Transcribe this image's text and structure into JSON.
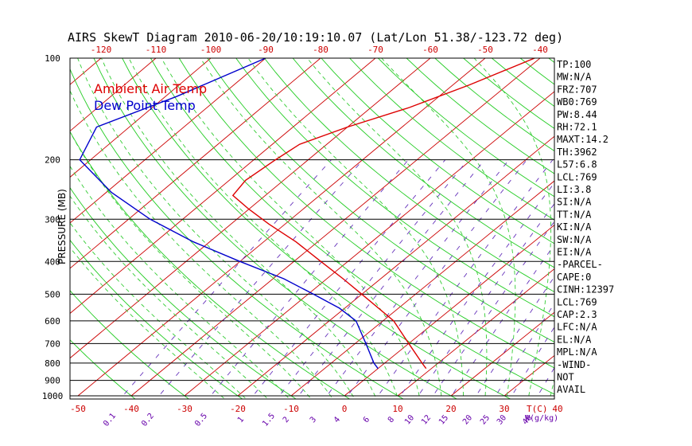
{
  "chart_data": {
    "type": "line",
    "title": "AIRS SkewT Diagram 2010-06-20/10:19:10.07 (Lat/Lon 51.38/-123.72 deg)",
    "ylabel": "PRESSURE (MB)",
    "x_unit_label": "T(C)",
    "mixing_unit_label": "W(g/kg)",
    "pressure_ticks": [
      100,
      200,
      300,
      400,
      500,
      600,
      700,
      800,
      900,
      1000
    ],
    "top_temp_ticks": [
      -120,
      -110,
      -100,
      -90,
      -80,
      -70,
      -60,
      -50,
      -40
    ],
    "bottom_temp_ticks": [
      -50,
      -40,
      -30,
      -20,
      -10,
      0,
      10,
      20,
      30,
      40
    ],
    "mixing_ratio_ticks": [
      "0.1",
      "0.2",
      "0.5",
      "1",
      "1.5",
      "2",
      "3",
      "4",
      "6",
      "8",
      "10",
      "12",
      "15",
      "20",
      "25",
      "30",
      "40"
    ],
    "legend": [
      {
        "name": "Ambient Air Temp",
        "color": "#dd0000"
      },
      {
        "name": "Dew Point Temp",
        "color": "#0000cc"
      }
    ],
    "series": [
      {
        "name": "Ambient Air Temp",
        "color": "#dd0000",
        "points": [
          {
            "p": 100,
            "t": -41
          },
          {
            "p": 120,
            "t": -47
          },
          {
            "p": 140,
            "t": -53
          },
          {
            "p": 160,
            "t": -60
          },
          {
            "p": 180,
            "t": -65
          },
          {
            "p": 200,
            "t": -66
          },
          {
            "p": 230,
            "t": -67
          },
          {
            "p": 255,
            "t": -66
          },
          {
            "p": 280,
            "t": -60
          },
          {
            "p": 310,
            "t": -53
          },
          {
            "p": 350,
            "t": -44
          },
          {
            "p": 400,
            "t": -35
          },
          {
            "p": 450,
            "t": -27
          },
          {
            "p": 500,
            "t": -20
          },
          {
            "p": 600,
            "t": -8
          },
          {
            "p": 700,
            "t": 0
          },
          {
            "p": 800,
            "t": 7
          },
          {
            "p": 830,
            "t": 9
          }
        ]
      },
      {
        "name": "Dew Point Temp",
        "color": "#0000cc",
        "points": [
          {
            "p": 100,
            "t": -90
          },
          {
            "p": 130,
            "t": -98
          },
          {
            "p": 160,
            "t": -106
          },
          {
            "p": 200,
            "t": -102
          },
          {
            "p": 250,
            "t": -89
          },
          {
            "p": 300,
            "t": -76
          },
          {
            "p": 350,
            "t": -63
          },
          {
            "p": 400,
            "t": -50
          },
          {
            "p": 450,
            "t": -38
          },
          {
            "p": 500,
            "t": -29
          },
          {
            "p": 550,
            "t": -21
          },
          {
            "p": 600,
            "t": -15
          },
          {
            "p": 700,
            "t": -8
          },
          {
            "p": 800,
            "t": -2
          },
          {
            "p": 830,
            "t": 0
          }
        ]
      }
    ]
  },
  "indices": [
    "TP:100",
    "MW:N/A",
    "FRZ:707",
    "WB0:769",
    "PW:8.44",
    "RH:72.1",
    "MAXT:14.2",
    "TH:3962",
    "L57:6.8",
    "LCL:769",
    "LI:3.8",
    "SI:N/A",
    "TT:N/A",
    "KI:N/A",
    "SW:N/A",
    "EI:N/A",
    "-PARCEL-",
    "CAPE:0",
    "CINH:12397",
    "LCL:769",
    "CAP:2.3",
    "LFC:N/A",
    "EL:N/A",
    "MPL:N/A",
    "-WIND-",
    "NOT",
    "AVAIL"
  ]
}
